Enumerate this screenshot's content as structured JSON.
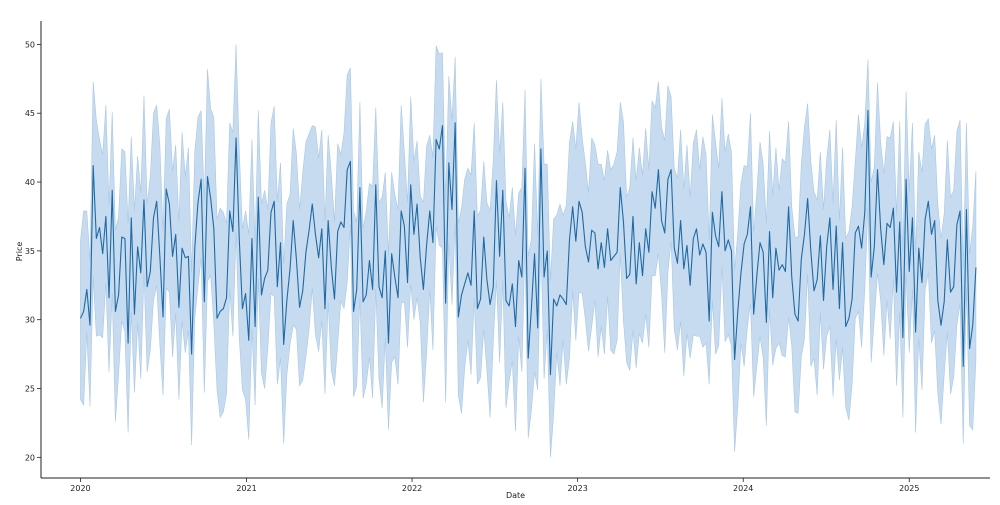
{
  "chart_data": {
    "type": "line",
    "title": "",
    "xlabel": "Date",
    "ylabel": "Price",
    "x_ticks": [
      "2020",
      "2021",
      "2022",
      "2023",
      "2024",
      "2025"
    ],
    "y_ticks": [
      20,
      25,
      30,
      35,
      40,
      45,
      50
    ],
    "xlim": [
      "2019-10-06",
      "2025-06-28"
    ],
    "ylim": [
      18.5,
      51.7
    ],
    "grid": false,
    "colors": {
      "line": "#1f6aa5",
      "band": "#c6dbef",
      "band_edge": "#a9c8e4",
      "axis": "#222222"
    },
    "series": [
      {
        "x_start": "2020-01-01",
        "x_step_days": 7,
        "mean": [
          30.1,
          30.6,
          32.2,
          29.6,
          41.2,
          35.9,
          36.7,
          34.8,
          37.5,
          31.6,
          39.4,
          30.6,
          31.8,
          36.0,
          35.9,
          28.3,
          37.4,
          30.4,
          35.3,
          33.4,
          38.7,
          32.4,
          33.5,
          37.4,
          38.6,
          34.6,
          30.2,
          39.5,
          38.4,
          34.6,
          36.2,
          30.9,
          35.2,
          34.5,
          34.6,
          27.5,
          35.2,
          38.5,
          40.2,
          31.3,
          40.4,
          38.8,
          36.6,
          30.1,
          30.6,
          30.8,
          31.6,
          37.9,
          36.4,
          43.2,
          35.9,
          30.8,
          31.9,
          28.5,
          35.9,
          29.5,
          38.9,
          31.8,
          33.0,
          33.6,
          37.8,
          38.6,
          32.4,
          35.6,
          28.2,
          31.4,
          33.7,
          37.2,
          34.4,
          30.9,
          32.1,
          34.9,
          36.5,
          38.4,
          36.2,
          34.5,
          36.6,
          30.8,
          37.2,
          33.8,
          31.5,
          36.4,
          37.1,
          36.7,
          40.9,
          41.5,
          30.6,
          32.2,
          39.6,
          31.3,
          31.8,
          34.3,
          32.2,
          39.8,
          32.4,
          31.6,
          35.0,
          28.3,
          34.8,
          33.1,
          31.6,
          37.9,
          36.8,
          32.7,
          39.8,
          36.2,
          38.4,
          34.5,
          32.2,
          35.4,
          37.9,
          35.6,
          43.1,
          42.4,
          44.1,
          31.2,
          41.4,
          38.0,
          44.3,
          30.2,
          31.8,
          32.6,
          33.4,
          32.5,
          37.9,
          30.8,
          31.5,
          36.0,
          32.9,
          31.1,
          32.4,
          40.1,
          34.6,
          39.4,
          31.4,
          31.0,
          32.6,
          29.5,
          34.3,
          33.1,
          41.0,
          27.2,
          30.8,
          34.8,
          29.4,
          42.4,
          33.1,
          35.0,
          26.0,
          31.5,
          31.0,
          31.8,
          31.5,
          31.1,
          35.8,
          38.2,
          35.7,
          38.6,
          37.8,
          35.3,
          34.2,
          36.5,
          36.3,
          33.7,
          35.6,
          33.8,
          36.6,
          34.3,
          34.6,
          34.9,
          39.6,
          37.1,
          33.0,
          33.3,
          37.5,
          32.6,
          35.6,
          33.2,
          36.6,
          34.9,
          39.3,
          38.1,
          40.9,
          37.2,
          36.3,
          40.2,
          40.9,
          35.2,
          34.1,
          37.2,
          33.7,
          35.4,
          32.5,
          35.9,
          36.6,
          34.7,
          35.5,
          34.9,
          29.9,
          37.8,
          36.1,
          35.3,
          39.3,
          35.0,
          35.8,
          35.0,
          27.1,
          30.6,
          33.4,
          35.5,
          36.2,
          38.2,
          30.4,
          33.2,
          35.6,
          34.9,
          29.8,
          36.4,
          31.6,
          35.2,
          33.6,
          34.0,
          33.5,
          38.2,
          33.1,
          30.4,
          29.9,
          34.4,
          36.2,
          38.8,
          35.0,
          32.1,
          32.9,
          36.1,
          31.4,
          35.3,
          37.4,
          32.2,
          36.8,
          30.8,
          35.6,
          29.5,
          30.1,
          31.5,
          36.3,
          36.8,
          35.2,
          37.8,
          45.2,
          33.1,
          35.3,
          40.9,
          36.6,
          34.0,
          37.0,
          36.7,
          38.1,
          32.0,
          37.1,
          28.7,
          40.2,
          33.5,
          37.4,
          29.1,
          35.2,
          32.7,
          37.3,
          38.6,
          36.2,
          37.2,
          31.4,
          29.6,
          31.3,
          35.8,
          32.0,
          32.4,
          36.9,
          37.9,
          26.6,
          38.0,
          27.9,
          29.6,
          33.8
        ],
        "lower": [
          24.2,
          23.8,
          29.1,
          23.7,
          33.1,
          28.8,
          28.9,
          28.7,
          32.7,
          26.2,
          31.9,
          22.6,
          26.0,
          29.9,
          29.1,
          21.8,
          30.6,
          24.7,
          29.8,
          25.7,
          33.4,
          26.2,
          27.8,
          31.4,
          32.5,
          28.2,
          24.5,
          32.3,
          32.0,
          27.3,
          30.5,
          24.2,
          29.9,
          27.6,
          29.2,
          20.9,
          30.1,
          32.4,
          34.5,
          24.7,
          32.8,
          33.2,
          29.7,
          24.9,
          22.9,
          23.3,
          24.6,
          32.2,
          28.8,
          36.4,
          28.7,
          24.9,
          24.2,
          21.3,
          29.3,
          23.8,
          33.0,
          26.1,
          25.0,
          27.9,
          31.9,
          31.7,
          25.3,
          27.2,
          21.0,
          26.0,
          28.2,
          29.6,
          29.3,
          25.2,
          25.6,
          27.3,
          29.3,
          32.3,
          28.9,
          27.7,
          29.9,
          24.6,
          31.3,
          26.3,
          25.2,
          28.2,
          31.4,
          30.8,
          32.7,
          36.9,
          24.4,
          25.2,
          31.6,
          24.3,
          25.3,
          27.3,
          24.3,
          32.2,
          25.7,
          23.6,
          28.7,
          22.0,
          26.9,
          27.3,
          25.3,
          31.2,
          31.3,
          28.0,
          32.6,
          30.0,
          31.6,
          29.8,
          24.0,
          27.5,
          32.2,
          27.8,
          36.8,
          35.4,
          35.2,
          24.0,
          35.6,
          31.1,
          37.0,
          24.5,
          23.2,
          26.5,
          28.5,
          26.0,
          31.6,
          25.3,
          25.8,
          29.3,
          26.3,
          22.9,
          28.4,
          32.9,
          26.9,
          32.9,
          23.6,
          25.5,
          27.0,
          21.9,
          28.8,
          26.2,
          35.5,
          21.4,
          23.4,
          26.2,
          24.9,
          35.5,
          25.7,
          29.3,
          20.0,
          23.1,
          27.6,
          25.2,
          28.5,
          25.3,
          27.2,
          32.1,
          28.5,
          32.0,
          31.9,
          30.0,
          27.7,
          29.5,
          31.4,
          27.3,
          29.5,
          27.5,
          31.7,
          27.8,
          27.5,
          28.5,
          34.8,
          29.9,
          26.9,
          26.3,
          29.2,
          26.5,
          29.0,
          28.3,
          30.4,
          28.0,
          33.2,
          33.2,
          34.8,
          31.8,
          27.6,
          33.4,
          35.7,
          29.3,
          27.8,
          29.9,
          25.9,
          29.0,
          27.2,
          28.9,
          28.8,
          28.8,
          28.0,
          28.3,
          25.3,
          31.4,
          27.5,
          28.1,
          33.9,
          28.4,
          28.9,
          28.1,
          20.4,
          23.7,
          28.3,
          26.6,
          29.4,
          31.2,
          24.4,
          26.6,
          28.8,
          27.2,
          22.3,
          30.8,
          26.7,
          27.9,
          28.3,
          27.4,
          27.3,
          30.2,
          28.1,
          23.3,
          23.2,
          27.3,
          28.6,
          33.3,
          26.6,
          27.2,
          24.5,
          30.5,
          26.4,
          28.8,
          29.5,
          24.4,
          28.6,
          25.6,
          28.0,
          23.6,
          22.7,
          25.3,
          30.1,
          30.6,
          28.0,
          32.2,
          38.2,
          26.9,
          30.1,
          33.4,
          31.4,
          27.4,
          31.4,
          28.6,
          33.0,
          25.2,
          30.5,
          22.9,
          33.4,
          27.6,
          32.2,
          21.8,
          28.7,
          24.9,
          32.2,
          33.4,
          28.3,
          29.2,
          24.6,
          22.4,
          26.0,
          29.1,
          24.6,
          25.8,
          29.6,
          31.2,
          21.0,
          32.4,
          22.3,
          22.0,
          27.1
        ],
        "upper": [
          35.8,
          37.9,
          37.9,
          34.3,
          47.3,
          44.5,
          43.1,
          42.0,
          45.6,
          38.3,
          45.1,
          36.5,
          37.5,
          42.4,
          42.2,
          37.0,
          43.3,
          37.9,
          41.9,
          39.2,
          46.3,
          38.4,
          40.4,
          45.0,
          45.6,
          42.7,
          36.4,
          44.6,
          45.3,
          40.8,
          42.7,
          37.1,
          43.6,
          40.4,
          42.5,
          33.4,
          42.2,
          44.7,
          45.2,
          38.6,
          48.2,
          45.3,
          44.7,
          37.3,
          38.1,
          37.8,
          37.0,
          44.3,
          43.6,
          50.0,
          42.4,
          36.6,
          37.9,
          36.2,
          43.1,
          35.6,
          45.2,
          38.4,
          39.4,
          38.0,
          44.3,
          45.5,
          38.6,
          41.4,
          34.0,
          38.4,
          39.1,
          43.9,
          42.1,
          38.0,
          40.7,
          42.9,
          43.5,
          44.1,
          44.0,
          41.7,
          43.8,
          37.2,
          43.4,
          40.6,
          37.1,
          42.8,
          42.0,
          43.6,
          47.8,
          48.3,
          37.9,
          37.1,
          45.8,
          36.6,
          37.9,
          39.9,
          39.7,
          45.4,
          38.5,
          38.9,
          40.7,
          34.7,
          40.7,
          39.1,
          38.0,
          45.6,
          42.2,
          38.5,
          46.2,
          41.5,
          43.0,
          39.0,
          38.5,
          42.6,
          43.4,
          41.8,
          49.9,
          49.3,
          49.4,
          38.6,
          47.7,
          44.5,
          49.1,
          37.0,
          38.1,
          40.2,
          41.0,
          40.5,
          44.3,
          37.5,
          38.0,
          41.5,
          38.5,
          37.9,
          41.6,
          47.4,
          42.1,
          45.8,
          38.6,
          37.4,
          39.6,
          36.1,
          39.2,
          39.6,
          46.7,
          34.6,
          35.9,
          42.8,
          36.1,
          47.5,
          41.3,
          41.3,
          32.8,
          37.3,
          37.6,
          38.4,
          37.6,
          38.3,
          42.9,
          44.4,
          42.4,
          45.8,
          43.2,
          41.4,
          39.2,
          43.2,
          42.7,
          41.3,
          41.3,
          40.1,
          42.3,
          40.9,
          41.3,
          42.2,
          45.8,
          44.4,
          38.9,
          39.6,
          43.2,
          40.1,
          42.5,
          40.5,
          43.9,
          40.9,
          45.9,
          45.4,
          47.3,
          44.0,
          43.0,
          47.0,
          46.2,
          41.0,
          40.3,
          43.8,
          39.5,
          42.7,
          38.9,
          42.8,
          43.8,
          40.9,
          43.3,
          42.0,
          35.8,
          44.9,
          42.9,
          41.0,
          46.1,
          42.2,
          43.5,
          42.2,
          33.6,
          36.3,
          39.9,
          41.2,
          41.1,
          45.0,
          36.3,
          39.3,
          42.9,
          41.3,
          37.0,
          43.7,
          39.0,
          42.5,
          39.4,
          41.7,
          41.4,
          44.4,
          38.2,
          36.0,
          36.0,
          41.3,
          44.0,
          45.7,
          41.5,
          39.3,
          38.7,
          42.2,
          38.0,
          41.7,
          43.8,
          38.5,
          44.5,
          37.2,
          42.5,
          35.9,
          36.4,
          38.2,
          41.5,
          44.9,
          42.5,
          44.3,
          48.9,
          40.0,
          41.1,
          47.2,
          42.9,
          40.6,
          43.3,
          43.2,
          44.4,
          37.6,
          44.4,
          34.8,
          46.6,
          39.2,
          44.3,
          34.8,
          42.2,
          40.7,
          44.2,
          44.6,
          42.4,
          43.4,
          38.4,
          35.9,
          37.7,
          43.0,
          38.9,
          39.4,
          43.7,
          44.5,
          33.8,
          44.3,
          34.8,
          36.8,
          40.8
        ]
      }
    ]
  }
}
